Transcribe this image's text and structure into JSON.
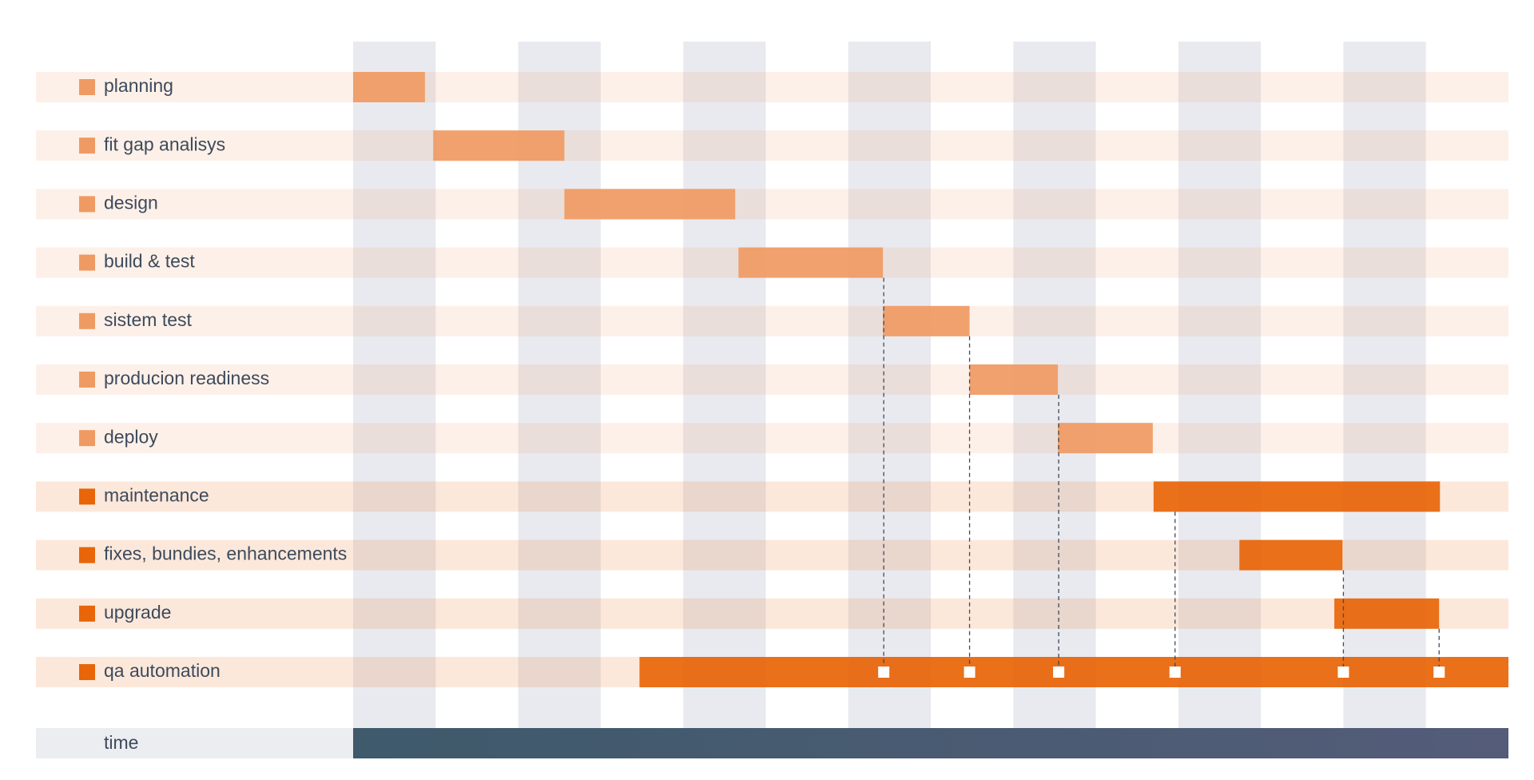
{
  "chart_data": {
    "type": "gantt",
    "xlim": [
      0,
      14
    ],
    "tasks": [
      {
        "name": "planning",
        "start": 0,
        "end": 0.87,
        "color": "#ef9a63"
      },
      {
        "name": "fit gap analisys",
        "start": 0.97,
        "end": 2.56,
        "color": "#ef9a63"
      },
      {
        "name": "design",
        "start": 2.56,
        "end": 4.63,
        "color": "#ef9a63"
      },
      {
        "name": "build & test",
        "start": 4.67,
        "end": 6.42,
        "color": "#ef9a63"
      },
      {
        "name": "sistem test",
        "start": 6.42,
        "end": 7.47,
        "color": "#ef9a63"
      },
      {
        "name": "producion readiness",
        "start": 7.47,
        "end": 8.54,
        "color": "#ef9a63"
      },
      {
        "name": "deploy",
        "start": 8.54,
        "end": 9.69,
        "color": "#ef9a63"
      },
      {
        "name": "maintenance",
        "start": 9.7,
        "end": 13.17,
        "color": "#e8650a"
      },
      {
        "name": "fixes, bundies, enhancements",
        "start": 10.74,
        "end": 11.99,
        "color": "#e8650a"
      },
      {
        "name": "upgrade",
        "start": 11.89,
        "end": 13.16,
        "color": "#e8650a"
      },
      {
        "name": "qa automation",
        "start": 3.47,
        "end": 14,
        "color": "#e8650a"
      }
    ],
    "milestones": [
      6.43,
      7.47,
      8.55,
      9.96,
      12.0,
      13.16
    ],
    "time_label": "time"
  }
}
